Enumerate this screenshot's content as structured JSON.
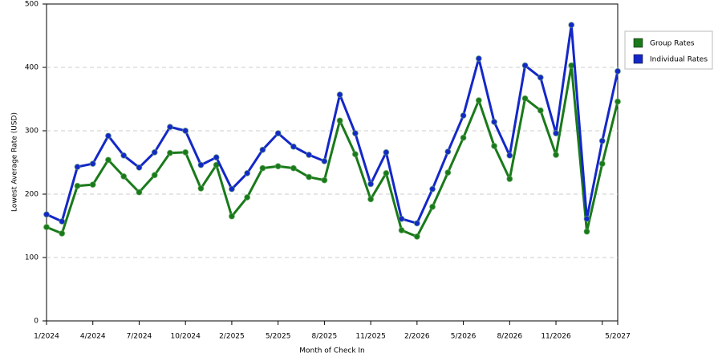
{
  "chart_data": {
    "type": "line",
    "x_label": "Month of Check In",
    "y_label": "Lowest Average Rate (USD)",
    "categories": [
      "1/2024",
      null,
      null,
      "4/2024",
      null,
      null,
      "7/2024",
      null,
      null,
      "10/2024",
      null,
      null,
      "2/2025",
      null,
      null,
      "5/2025",
      null,
      null,
      "8/2025",
      null,
      null,
      "11/2025",
      null,
      null,
      "2/2026",
      null,
      null,
      "5/2026",
      null,
      null,
      "8/2026",
      null,
      null,
      "11/2026",
      null,
      null,
      null,
      "5/2027"
    ],
    "series": [
      {
        "name": "Group Rates",
        "color": "#1a7a1a",
        "values": [
          148,
          138,
          213,
          215,
          254,
          228,
          203,
          230,
          265,
          266,
          209,
          246,
          165,
          195,
          241,
          244,
          241,
          227,
          222,
          316,
          263,
          192,
          233,
          143,
          133,
          180,
          234,
          289,
          348,
          276,
          224,
          351,
          332,
          262,
          403,
          141,
          248,
          346
        ]
      },
      {
        "name": "Individual Rates",
        "color": "#1428c8",
        "values": [
          168,
          157,
          243,
          248,
          292,
          261,
          242,
          266,
          306,
          300,
          246,
          258,
          208,
          233,
          270,
          296,
          275,
          262,
          252,
          357,
          296,
          216,
          266,
          161,
          154,
          208,
          267,
          324,
          414,
          314,
          261,
          403,
          384,
          296,
          467,
          161,
          284,
          394
        ]
      }
    ],
    "ylim": [
      0,
      500
    ],
    "yticks": [
      0,
      100,
      200,
      300,
      400,
      500
    ],
    "grid": true,
    "legend": "right"
  }
}
